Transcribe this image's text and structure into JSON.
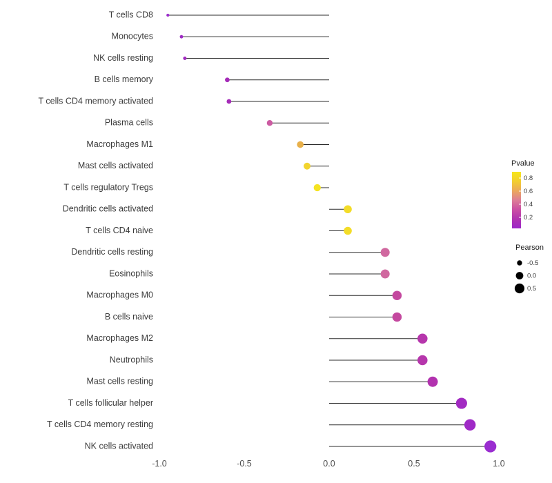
{
  "chart_data": {
    "type": "lollipop",
    "title": "",
    "xlabel": "",
    "ylabel": "",
    "x_ticks": [
      -1.0,
      -0.5,
      0.0,
      0.5,
      1.0
    ],
    "x_tick_labels": [
      "-1.0",
      "-0.5",
      "0.0",
      "0.5",
      "1.0"
    ],
    "xlim": [
      -1.05,
      1.05
    ],
    "grid": "off",
    "legend_position": "right",
    "points": [
      {
        "label": "T cells CD8",
        "pearson": -0.95,
        "pvalue": 0.05,
        "color": "#9B2DCB"
      },
      {
        "label": "Monocytes",
        "pearson": -0.87,
        "pvalue": 0.1,
        "color": "#9E2BC4"
      },
      {
        "label": "NK cells resting",
        "pearson": -0.85,
        "pvalue": 0.12,
        "color": "#A02ABF"
      },
      {
        "label": "B cells memory",
        "pearson": -0.6,
        "pvalue": 0.15,
        "color": "#A52BB8"
      },
      {
        "label": "T cells CD4 memory activated",
        "pearson": -0.59,
        "pvalue": 0.15,
        "color": "#A52BB8"
      },
      {
        "label": "Plasma cells",
        "pearson": -0.35,
        "pvalue": 0.42,
        "color": "#CC5BA2"
      },
      {
        "label": "Macrophages M1",
        "pearson": -0.17,
        "pvalue": 0.7,
        "color": "#E8B04A"
      },
      {
        "label": "Mast cells activated",
        "pearson": -0.13,
        "pvalue": 0.8,
        "color": "#F2D42E"
      },
      {
        "label": "T cells regulatory  Tregs",
        "pearson": -0.07,
        "pvalue": 0.85,
        "color": "#F5E322"
      },
      {
        "label": "Dendritic cells activated",
        "pearson": 0.11,
        "pvalue": 0.82,
        "color": "#F3DC28"
      },
      {
        "label": "T cells CD4 naive",
        "pearson": 0.11,
        "pvalue": 0.82,
        "color": "#F3DC28"
      },
      {
        "label": "Dendritic cells resting",
        "pearson": 0.33,
        "pvalue": 0.45,
        "color": "#D0689F"
      },
      {
        "label": "Eosinophils",
        "pearson": 0.33,
        "pvalue": 0.45,
        "color": "#D0689F"
      },
      {
        "label": "Macrophages M0",
        "pearson": 0.4,
        "pvalue": 0.33,
        "color": "#C4489F"
      },
      {
        "label": "B cells naive",
        "pearson": 0.4,
        "pvalue": 0.33,
        "color": "#C4489F"
      },
      {
        "label": "Macrophages M2",
        "pearson": 0.55,
        "pvalue": 0.22,
        "color": "#B636AC"
      },
      {
        "label": "Neutrophils",
        "pearson": 0.55,
        "pvalue": 0.22,
        "color": "#B636AC"
      },
      {
        "label": "Mast cells resting",
        "pearson": 0.61,
        "pvalue": 0.2,
        "color": "#B232AF"
      },
      {
        "label": "T cells follicular helper",
        "pearson": 0.78,
        "pvalue": 0.1,
        "color": "#A22BC2"
      },
      {
        "label": "T cells CD4 memory resting",
        "pearson": 0.83,
        "pvalue": 0.08,
        "color": "#9F2AC6"
      },
      {
        "label": "NK cells activated",
        "pearson": 0.95,
        "pvalue": 0.04,
        "color": "#9A2DD0"
      }
    ],
    "legends": {
      "pvalue": {
        "title": "Pvalue",
        "tick_labels": [
          "0.8",
          "0.6",
          "0.4",
          "0.2"
        ],
        "gradient_top_to_bottom": [
          "#F6E61C",
          "#F2CE2F",
          "#EBA85C",
          "#DD7E96",
          "#CB4FA3",
          "#B133B0",
          "#9C27C8"
        ]
      },
      "pearson": {
        "title": "Pearson",
        "items": [
          {
            "label": "-0.5",
            "value": -0.5
          },
          {
            "label": "0.0",
            "value": 0.0
          },
          {
            "label": "0.5",
            "value": 0.5
          }
        ],
        "dot_color": "#000000"
      }
    },
    "colors": {
      "stem": "#2b2b2b",
      "axis_text": "#4d4d4d",
      "label_text": "#3c3c3c",
      "legend_title_text": "#1a1a1a"
    }
  }
}
